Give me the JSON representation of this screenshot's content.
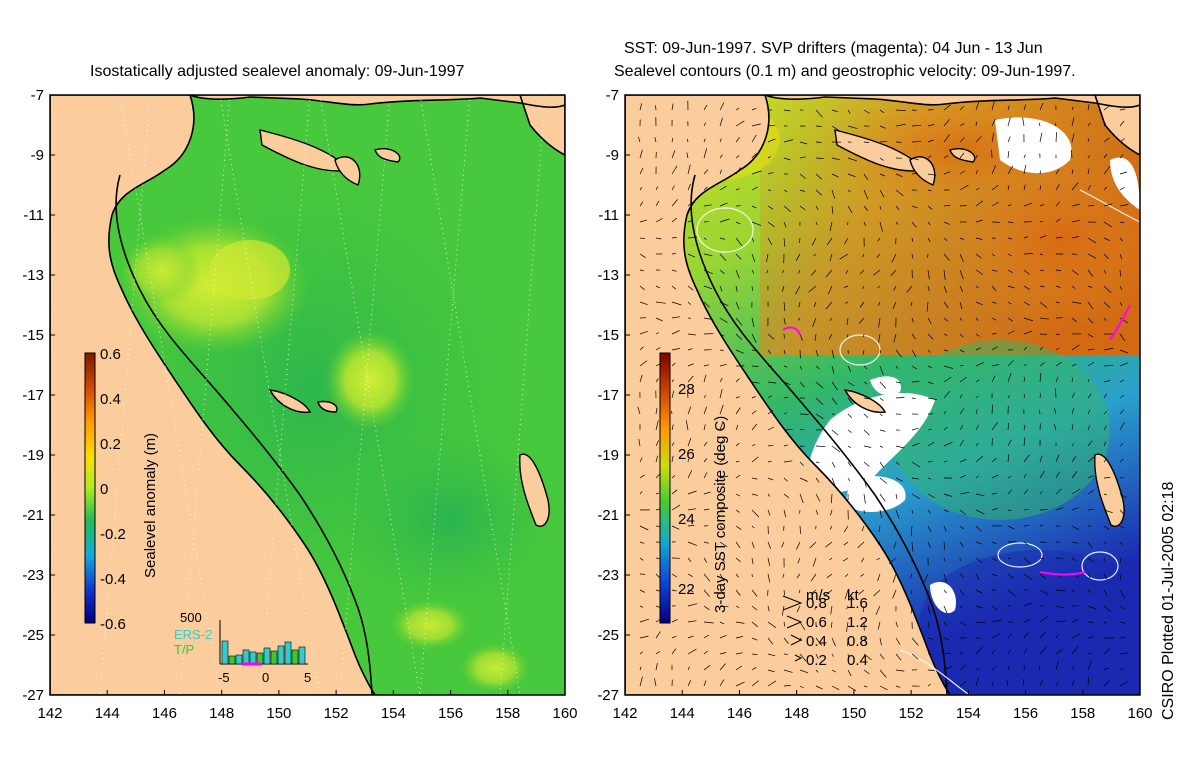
{
  "left_panel": {
    "title": "Isostatically adjusted sealevel anomaly: 09-Jun-1997",
    "colorbar": {
      "label": "Sealevel anomaly (m)",
      "ticks": [
        "0.6",
        "0.4",
        "0.2",
        "0",
        "-0.2",
        "-0.4",
        "-0.6"
      ]
    },
    "histogram": {
      "ymax_label": "500",
      "x_ticks": [
        "-5",
        "0",
        "5"
      ],
      "legend": [
        "ERS-2",
        "T/P"
      ],
      "legend_colors": [
        "#33cccc",
        "#33cc33"
      ]
    }
  },
  "right_panel": {
    "title_line1": "SST: 09-Jun-1997. SVP drifters (magenta): 04 Jun - 13 Jun",
    "title_line2": "Sealevel contours (0.1 m) and geostrophic velocity: 09-Jun-1997.",
    "colorbar": {
      "label": "3-day SST composite (deg C)",
      "ticks": [
        "28",
        "26",
        "24",
        "22"
      ]
    },
    "velocity_legend": {
      "header_ms": "m/s",
      "header_kt": "kt",
      "rows": [
        {
          "ms": "0.8",
          "kt": "1.6"
        },
        {
          "ms": "0.6",
          "kt": "1.2"
        },
        {
          "ms": "0.4",
          "kt": "0.8"
        },
        {
          "ms": "0.2",
          "kt": "0.4"
        }
      ]
    }
  },
  "axes": {
    "x_ticks": [
      "142",
      "144",
      "146",
      "148",
      "150",
      "152",
      "154",
      "156",
      "158",
      "160"
    ],
    "y_ticks": [
      "-7",
      "-9",
      "-11",
      "-13",
      "-15",
      "-17",
      "-19",
      "-21",
      "-23",
      "-25",
      "-27"
    ]
  },
  "credit": "CSIRO Plotted 01-Jul-2005 02:18",
  "colors": {
    "land": "#fbcc9c",
    "sea_base": "#44cc33",
    "coast": "#000000"
  }
}
